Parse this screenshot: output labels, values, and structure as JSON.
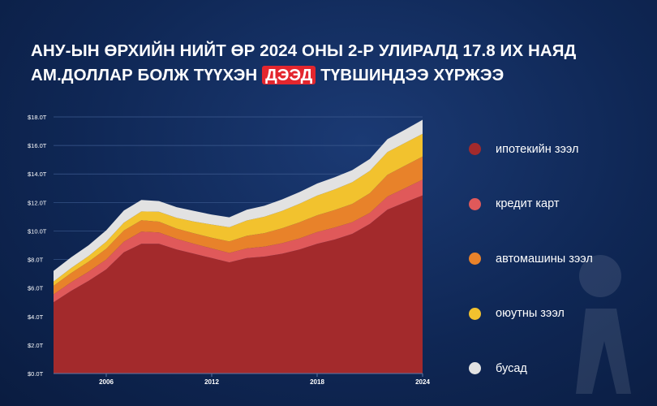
{
  "title": {
    "line1": "АНУ-ЫН ӨРХИЙН НИЙТ ӨР 2024 ОНЫ 2-Р УЛИРАЛД 17.8 ИХ НАЯД",
    "line2_pre": "АМ.ДОЛЛАР БОЛЖ ТҮҮХЭН",
    "highlight": "ДЭЭД",
    "line2_post": "ТҮВШИНДЭЭ ХҮРЖЭЭ"
  },
  "colors": {
    "highlight_bg": "#e3262e"
  },
  "chart_data": {
    "type": "area",
    "stacked": true,
    "x": [
      2003,
      2004,
      2005,
      2006,
      2007,
      2008,
      2009,
      2010,
      2011,
      2012,
      2013,
      2014,
      2015,
      2016,
      2017,
      2018,
      2019,
      2020,
      2021,
      2022,
      2023,
      2024
    ],
    "series": [
      {
        "name": "ипотекийн зээл",
        "color": "#a32a2c",
        "values": [
          5.0,
          5.8,
          6.5,
          7.3,
          8.5,
          9.1,
          9.1,
          8.7,
          8.4,
          8.1,
          7.8,
          8.1,
          8.2,
          8.4,
          8.7,
          9.1,
          9.4,
          9.8,
          10.5,
          11.5,
          12.0,
          12.5
        ]
      },
      {
        "name": "кредит карт",
        "color": "#e0595a",
        "values": [
          0.55,
          0.6,
          0.65,
          0.7,
          0.75,
          0.85,
          0.8,
          0.75,
          0.7,
          0.68,
          0.66,
          0.68,
          0.7,
          0.74,
          0.78,
          0.82,
          0.85,
          0.82,
          0.77,
          0.92,
          1.0,
          1.1
        ]
      },
      {
        "name": "автомашины зээл",
        "color": "#e8822a",
        "values": [
          0.6,
          0.65,
          0.7,
          0.75,
          0.78,
          0.8,
          0.75,
          0.72,
          0.73,
          0.75,
          0.8,
          0.88,
          0.95,
          1.05,
          1.13,
          1.18,
          1.22,
          1.28,
          1.38,
          1.52,
          1.58,
          1.62
        ]
      },
      {
        "name": "оюутны зээл",
        "color": "#f2c22e",
        "values": [
          0.3,
          0.35,
          0.4,
          0.5,
          0.55,
          0.62,
          0.7,
          0.75,
          0.83,
          0.92,
          1.0,
          1.08,
          1.15,
          1.22,
          1.3,
          1.38,
          1.45,
          1.52,
          1.57,
          1.6,
          1.6,
          1.6
        ]
      },
      {
        "name": "бусад",
        "color": "#e2e2e2",
        "values": [
          0.75,
          0.75,
          0.75,
          0.8,
          0.85,
          0.8,
          0.75,
          0.75,
          0.75,
          0.7,
          0.7,
          0.75,
          0.77,
          0.8,
          0.82,
          0.85,
          0.85,
          0.85,
          0.83,
          0.9,
          0.92,
          0.98
        ]
      }
    ],
    "yticks": [
      "$0.0T",
      "$2.0T",
      "$4.0T",
      "$6.0T",
      "$8.0T",
      "$10.0T",
      "$12.0T",
      "$14.0T",
      "$16.0T",
      "$18.0T"
    ],
    "ytick_values": [
      0,
      2,
      4,
      6,
      8,
      10,
      12,
      14,
      16,
      18
    ],
    "xticks": [
      "2006",
      "2012",
      "2018",
      "2024"
    ],
    "xtick_values": [
      2006,
      2012,
      2018,
      2024
    ],
    "ylim": [
      0,
      18
    ],
    "xlim": [
      2003,
      2024
    ],
    "grid": "horizontal",
    "legend_position": "right"
  }
}
